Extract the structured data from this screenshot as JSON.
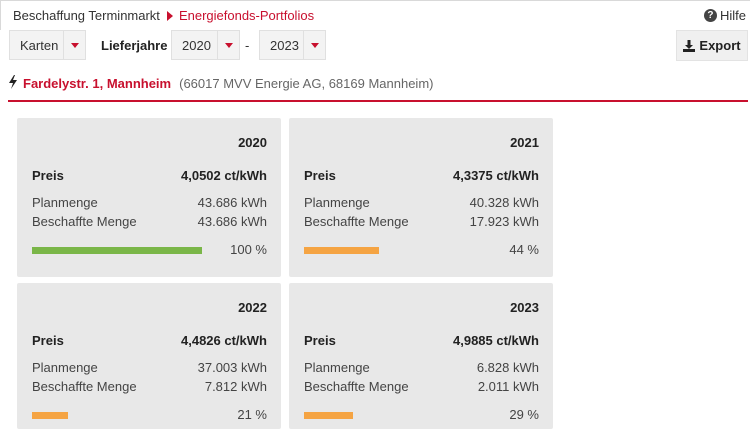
{
  "breadcrumb": {
    "root": "Beschaffung Terminmarkt",
    "current": "Energiefonds-Portfolios"
  },
  "help": {
    "label": "Hilfe",
    "icon": "question-circle-icon"
  },
  "toolbar": {
    "view": "Karten",
    "years_label": "Lieferjahre",
    "year_from": "2020",
    "separator": "-",
    "year_to": "2023",
    "export_label": "Export"
  },
  "location": {
    "name": "Fardelystr. 1, Mannheim",
    "details": "(66017 MVV Energie AG, 68169 Mannheim)"
  },
  "colors": {
    "accent": "#c8102e",
    "complete": "#7ab648",
    "partial": "#f5a443"
  },
  "cards": [
    {
      "year": "2020",
      "price_label": "Preis",
      "price": "4,0502 ct/kWh",
      "plan_label": "Planmenge",
      "plan": "43.686 kWh",
      "procured_label": "Beschaffte Menge",
      "procured": "43.686 kWh",
      "percent_text": "100 %",
      "progress": 1.0,
      "status": "complete"
    },
    {
      "year": "2021",
      "price_label": "Preis",
      "price": "4,3375 ct/kWh",
      "plan_label": "Planmenge",
      "plan": "40.328 kWh",
      "procured_label": "Beschaffte Menge",
      "procured": "17.923 kWh",
      "percent_text": "44 %",
      "progress": 0.44,
      "status": "partial"
    },
    {
      "year": "2022",
      "price_label": "Preis",
      "price": "4,4826 ct/kWh",
      "plan_label": "Planmenge",
      "plan": "37.003 kWh",
      "procured_label": "Beschaffte Menge",
      "procured": "7.812 kWh",
      "percent_text": "21 %",
      "progress": 0.21,
      "status": "partial"
    },
    {
      "year": "2023",
      "price_label": "Preis",
      "price": "4,9885 ct/kWh",
      "plan_label": "Planmenge",
      "plan": "6.828 kWh",
      "procured_label": "Beschaffte Menge",
      "procured": "2.011 kWh",
      "percent_text": "29 %",
      "progress": 0.29,
      "status": "partial"
    }
  ]
}
